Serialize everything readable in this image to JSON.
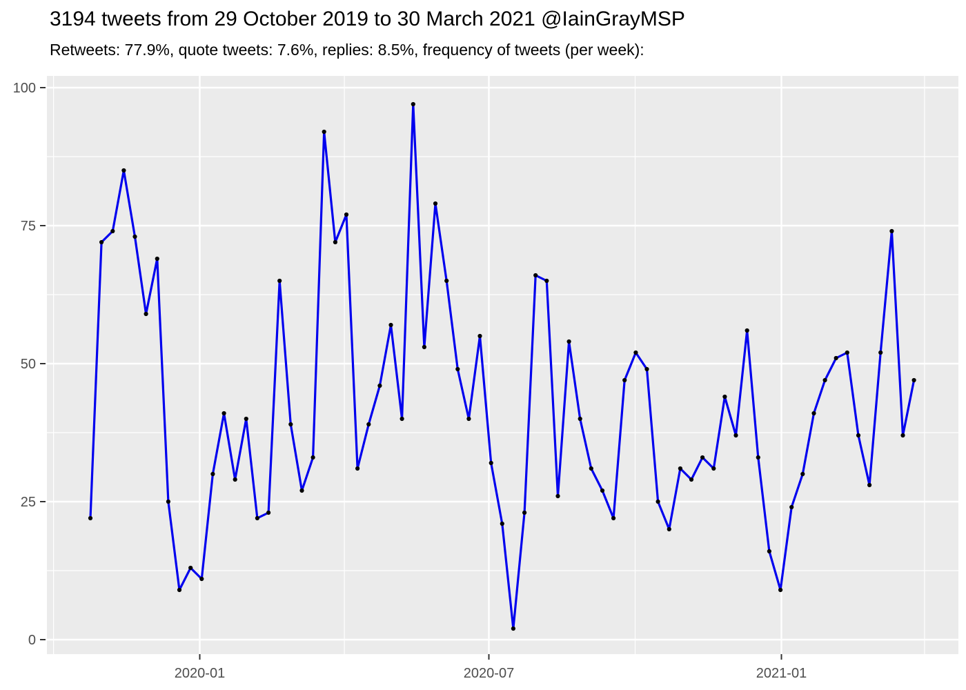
{
  "header": {
    "title": "3194 tweets from 29 October 2019 to 30 March 2021 @IainGrayMSP",
    "subtitle": "Retweets: 77.9%, quote tweets: 7.6%, replies: 8.5%, frequency of tweets (per week):"
  },
  "stats": {
    "total_tweets": 3194,
    "account": "@IainGrayMSP",
    "period_start": "29 October 2019",
    "period_end": "30 March 2021",
    "retweets_pct": "77.9%",
    "quote_tweets_pct": "7.6%",
    "replies_pct": "8.5%"
  },
  "chart_data": {
    "type": "line",
    "title": "3194 tweets from 29 October 2019 to 30 March 2021 @IainGrayMSP",
    "subtitle": "Retweets: 77.9%, quote tweets: 7.6%, replies: 8.5%, frequency of tweets (per week):",
    "xlabel": "",
    "ylabel": "",
    "legend": "none",
    "x_axis": {
      "unit": "week",
      "tick_labels": [
        "2020-01",
        "2020-07",
        "2021-01"
      ],
      "minor_gridlines": true
    },
    "y_axis": {
      "tick_labels": [
        "0",
        "25",
        "50",
        "75",
        "100"
      ],
      "tick_values": [
        0,
        25,
        50,
        75,
        100
      ],
      "range": [
        0,
        100
      ],
      "minor_gridlines": true
    },
    "series": [
      {
        "name": "tweets-per-week",
        "point_count": 75,
        "values": [
          22,
          72,
          74,
          85,
          73,
          59,
          69,
          25,
          9,
          13,
          11,
          30,
          41,
          29,
          40,
          22,
          23,
          65,
          39,
          27,
          33,
          92,
          72,
          77,
          31,
          39,
          46,
          57,
          40,
          97,
          53,
          79,
          65,
          49,
          40,
          55,
          32,
          21,
          2,
          23,
          66,
          65,
          26,
          54,
          40,
          31,
          27,
          22,
          47,
          52,
          49,
          25,
          20,
          31,
          29,
          33,
          31,
          44,
          37,
          56,
          33,
          16,
          9,
          24,
          30,
          41,
          47,
          51,
          52,
          37,
          28,
          52,
          74,
          37,
          47
        ]
      }
    ],
    "style": {
      "line_color": "#0000EE",
      "point_color": "#000000",
      "panel_background": "#EBEBEB",
      "gridline_color": "#FFFFFF",
      "axis_tick_color": "#333333",
      "tick_label_color": "#4D4D4D",
      "title_color": "#000000"
    }
  }
}
